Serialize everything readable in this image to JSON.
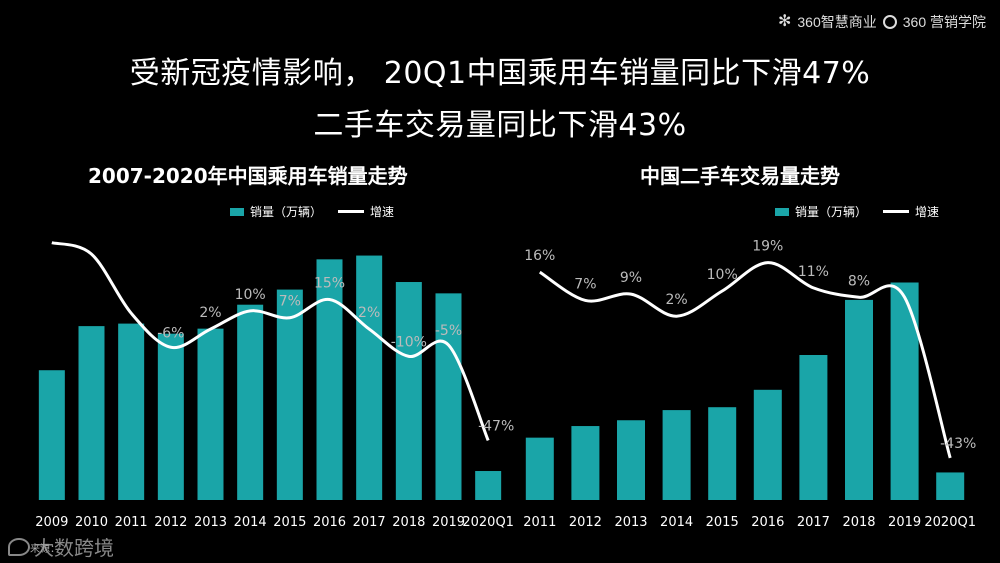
{
  "brand": {
    "left": "360智慧商业",
    "right": "360 营销学院"
  },
  "headline": {
    "line1": "受新冠疫情影响， 20Q1中国乘用车销量同比下滑47%",
    "line2": "二手车交易量同比下滑43%"
  },
  "legend": {
    "bar": "销量（万辆）",
    "line": "增速"
  },
  "source": "来源：",
  "watermark": "大数跨境",
  "colors": {
    "bar": "#1AA5A8",
    "line": "#FFFFFF",
    "label": "#BBBBBB",
    "bg": "#000000"
  },
  "chart_data": [
    {
      "type": "bar",
      "title": "2007-2020年中国乘用车销量走势",
      "categories": [
        "2009",
        "2010",
        "2011",
        "2012",
        "2013",
        "2014",
        "2015",
        "2016",
        "2017",
        "2018",
        "2019",
        "2020Q1"
      ],
      "series": [
        {
          "name": "销量（万辆）",
          "type": "bar",
          "values": [
            1030,
            1380,
            1400,
            1320,
            1360,
            1550,
            1670,
            1910,
            1940,
            1730,
            1640,
            230
          ]
        },
        {
          "name": "增速",
          "type": "line",
          "values": [
            40,
            35,
            9,
            -6,
            2,
            10,
            7,
            15,
            2,
            -10,
            -5,
            -47
          ]
        }
      ],
      "growth_labels": [
        "",
        "",
        "",
        "-6%",
        "2%",
        "10%",
        "7%",
        "15%",
        "2%",
        "-10%",
        "-5%",
        "-47%"
      ],
      "ylim": [
        0,
        2000
      ],
      "growth_range": [
        -60,
        50
      ]
    },
    {
      "type": "bar",
      "title": "中国二手车交易量走势",
      "categories": [
        "2011",
        "2012",
        "2013",
        "2014",
        "2015",
        "2016",
        "2017",
        "2018",
        "2019",
        "2020Q1"
      ],
      "series": [
        {
          "name": "销量（万辆）",
          "type": "bar",
          "values": [
            430,
            510,
            550,
            620,
            640,
            760,
            1000,
            1380,
            1500,
            190
          ]
        },
        {
          "name": "增速",
          "type": "line",
          "values": [
            16,
            7,
            9,
            2,
            10,
            19,
            11,
            8,
            8,
            -43
          ]
        }
      ],
      "growth_labels": [
        "16%",
        "7%",
        "9%",
        "2%",
        "10%",
        "19%",
        "11%",
        "8%",
        "",
        "-43%"
      ],
      "ylim": [
        0,
        1600
      ],
      "growth_range": [
        -50,
        30
      ]
    }
  ]
}
